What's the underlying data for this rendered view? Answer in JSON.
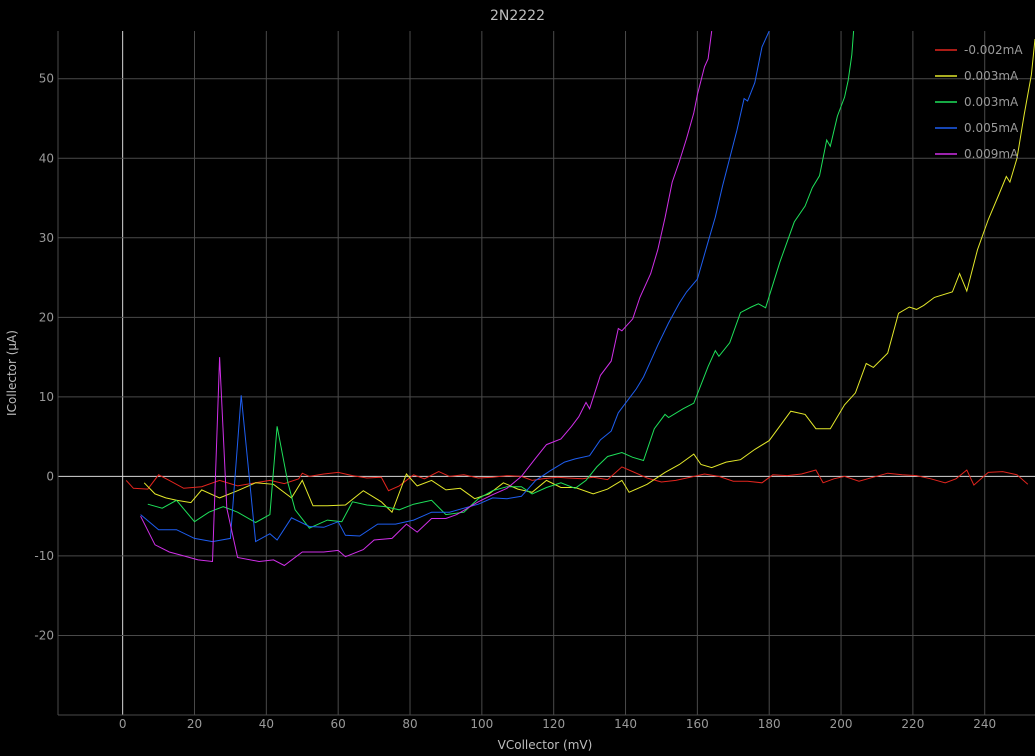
{
  "chart_data": {
    "type": "line",
    "title": "2N2222",
    "xlabel": "VCollector (mV)",
    "ylabel": "ICollector (µA)",
    "xlim": [
      -18,
      254
    ],
    "ylim": [
      -30,
      56
    ],
    "xticks": [
      0,
      20,
      40,
      60,
      80,
      100,
      120,
      140,
      160,
      180,
      200,
      220,
      240
    ],
    "yticks": [
      -20,
      -10,
      0,
      10,
      20,
      30,
      40,
      50
    ],
    "grid": true,
    "legend_position": "top-right",
    "series": [
      {
        "name": "-0.002mA",
        "color": "#e3251e",
        "points": [
          [
            1,
            -0.5
          ],
          [
            3,
            -1.5
          ],
          [
            7,
            -1.6
          ],
          [
            10,
            0.2
          ],
          [
            13,
            -0.5
          ],
          [
            17,
            -1.5
          ],
          [
            22,
            -1.3
          ],
          [
            27,
            -0.5
          ],
          [
            32,
            -1.2
          ],
          [
            37,
            -0.8
          ],
          [
            41,
            -0.5
          ],
          [
            45,
            -0.9
          ],
          [
            49,
            -0.3
          ],
          [
            50,
            0.4
          ],
          [
            52,
            0
          ],
          [
            56,
            0.3
          ],
          [
            60,
            0.5
          ],
          [
            64,
            0.1
          ],
          [
            68,
            -0.2
          ],
          [
            72,
            -0.1
          ],
          [
            74,
            -1.8
          ],
          [
            77,
            -1.2
          ],
          [
            81,
            0.2
          ],
          [
            84,
            -0.3
          ],
          [
            88,
            0.6
          ],
          [
            91,
            0
          ],
          [
            95,
            0.2
          ],
          [
            99,
            -0.2
          ],
          [
            103,
            -0.1
          ],
          [
            107,
            0.1
          ],
          [
            111,
            0
          ],
          [
            114,
            -0.5
          ],
          [
            117,
            -0.3
          ],
          [
            121,
            -0.1
          ],
          [
            124,
            -0.2
          ],
          [
            128,
            -0.3
          ],
          [
            131,
            -0.1
          ],
          [
            135,
            -0.4
          ],
          [
            139,
            1.2
          ],
          [
            143,
            0.4
          ],
          [
            146,
            -0.2
          ],
          [
            150,
            -0.7
          ],
          [
            154,
            -0.5
          ],
          [
            158,
            -0.1
          ],
          [
            162,
            0.3
          ],
          [
            166,
            0
          ],
          [
            170,
            -0.6
          ],
          [
            174,
            -0.6
          ],
          [
            178,
            -0.8
          ],
          [
            181,
            0.2
          ],
          [
            185,
            0.1
          ],
          [
            189,
            0.3
          ],
          [
            193,
            0.8
          ],
          [
            195,
            -0.8
          ],
          [
            198,
            -0.3
          ],
          [
            201,
            0
          ],
          [
            205,
            -0.6
          ],
          [
            209,
            -0.1
          ],
          [
            213,
            0.4
          ],
          [
            217,
            0.2
          ],
          [
            221,
            0.1
          ],
          [
            225,
            -0.3
          ],
          [
            229,
            -0.8
          ],
          [
            232,
            -0.3
          ],
          [
            235,
            0.8
          ],
          [
            237,
            -1.1
          ],
          [
            241,
            0.5
          ],
          [
            245,
            0.6
          ],
          [
            249,
            0.2
          ],
          [
            252,
            -1
          ]
        ]
      },
      {
        "name": "0.003mA",
        "color": "#e3e82a",
        "points": [
          [
            6,
            -0.8
          ],
          [
            9,
            -2.2
          ],
          [
            12,
            -2.7
          ],
          [
            15,
            -3
          ],
          [
            19,
            -3.3
          ],
          [
            22,
            -1.7
          ],
          [
            27,
            -2.7
          ],
          [
            32,
            -1.8
          ],
          [
            37,
            -0.8
          ],
          [
            42,
            -1
          ],
          [
            47,
            -2.7
          ],
          [
            50,
            -0.5
          ],
          [
            53,
            -3.7
          ],
          [
            57,
            -3.7
          ],
          [
            62,
            -3.6
          ],
          [
            67,
            -1.8
          ],
          [
            72,
            -3.2
          ],
          [
            75,
            -4.5
          ],
          [
            79,
            0.3
          ],
          [
            82,
            -1.2
          ],
          [
            86,
            -0.5
          ],
          [
            90,
            -1.7
          ],
          [
            94,
            -1.5
          ],
          [
            98,
            -2.8
          ],
          [
            102,
            -2.2
          ],
          [
            106,
            -0.8
          ],
          [
            110,
            -1.6
          ],
          [
            114,
            -2
          ],
          [
            118,
            -0.5
          ],
          [
            122,
            -1.4
          ],
          [
            126,
            -1.4
          ],
          [
            131,
            -2.2
          ],
          [
            135,
            -1.6
          ],
          [
            139,
            -0.5
          ],
          [
            141,
            -2
          ],
          [
            146,
            -1
          ],
          [
            151,
            0.5
          ],
          [
            155,
            1.5
          ],
          [
            159,
            2.8
          ],
          [
            161,
            1.5
          ],
          [
            164,
            1.1
          ],
          [
            168,
            1.8
          ],
          [
            172,
            2.1
          ],
          [
            176,
            3.4
          ],
          [
            180,
            4.5
          ],
          [
            186,
            8.2
          ],
          [
            190,
            7.8
          ],
          [
            193,
            6
          ],
          [
            197,
            6
          ],
          [
            201,
            9
          ],
          [
            204,
            10.5
          ],
          [
            207,
            14.2
          ],
          [
            209,
            13.7
          ],
          [
            213,
            15.5
          ],
          [
            216,
            20.5
          ],
          [
            219,
            21.3
          ],
          [
            221,
            21
          ],
          [
            223,
            21.5
          ],
          [
            226,
            22.5
          ],
          [
            231,
            23.2
          ],
          [
            233,
            25.5
          ],
          [
            235,
            23.3
          ],
          [
            238,
            28.5
          ],
          [
            241,
            32.3
          ],
          [
            244,
            35.5
          ],
          [
            246,
            37.7
          ],
          [
            247,
            37
          ],
          [
            249,
            40
          ],
          [
            251,
            45.5
          ],
          [
            253,
            50.5
          ],
          [
            254,
            55
          ]
        ]
      },
      {
        "name": "0.003mA",
        "color": "#1ee05a",
        "points": [
          [
            7,
            -3.5
          ],
          [
            11,
            -4
          ],
          [
            15,
            -3
          ],
          [
            20,
            -5.7
          ],
          [
            24,
            -4.5
          ],
          [
            28,
            -3.8
          ],
          [
            32,
            -4.5
          ],
          [
            37,
            -5.8
          ],
          [
            41,
            -4.8
          ],
          [
            43,
            6.3
          ],
          [
            46,
            -0.8
          ],
          [
            48,
            -4.2
          ],
          [
            52,
            -6.5
          ],
          [
            57,
            -5.5
          ],
          [
            61,
            -5.7
          ],
          [
            64,
            -3.2
          ],
          [
            68,
            -3.6
          ],
          [
            73,
            -3.8
          ],
          [
            77,
            -4.2
          ],
          [
            81,
            -3.5
          ],
          [
            86,
            -3
          ],
          [
            90,
            -4.8
          ],
          [
            95,
            -4.5
          ],
          [
            99,
            -2.8
          ],
          [
            103,
            -1.8
          ],
          [
            107,
            -1.3
          ],
          [
            111,
            -1.3
          ],
          [
            114,
            -2.2
          ],
          [
            118,
            -1.4
          ],
          [
            122,
            -0.8
          ],
          [
            126,
            -1.5
          ],
          [
            129,
            -0.5
          ],
          [
            132,
            1.2
          ],
          [
            135,
            2.5
          ],
          [
            139,
            3
          ],
          [
            142,
            2.4
          ],
          [
            145,
            2
          ],
          [
            148,
            6
          ],
          [
            151,
            7.8
          ],
          [
            152,
            7.4
          ],
          [
            156,
            8.5
          ],
          [
            159,
            9.2
          ],
          [
            163,
            13.8
          ],
          [
            165,
            15.8
          ],
          [
            166,
            15.1
          ],
          [
            169,
            16.8
          ],
          [
            172,
            20.6
          ],
          [
            175,
            21.3
          ],
          [
            177,
            21.7
          ],
          [
            179,
            21.2
          ],
          [
            183,
            27
          ],
          [
            187,
            32
          ],
          [
            190,
            34
          ],
          [
            192,
            36.3
          ],
          [
            194,
            37.8
          ],
          [
            196,
            42.3
          ],
          [
            197,
            41.5
          ],
          [
            199,
            45.3
          ],
          [
            201,
            47.7
          ],
          [
            202,
            49.8
          ],
          [
            203,
            53
          ],
          [
            203.5,
            56
          ]
        ]
      },
      {
        "name": "0.005mA",
        "color": "#1e5ef0",
        "points": [
          [
            5,
            -4.8
          ],
          [
            10,
            -6.7
          ],
          [
            15,
            -6.7
          ],
          [
            20,
            -7.8
          ],
          [
            25,
            -8.2
          ],
          [
            30,
            -7.8
          ],
          [
            33,
            10.2
          ],
          [
            37,
            -8.2
          ],
          [
            41,
            -7.2
          ],
          [
            43,
            -8
          ],
          [
            47,
            -5.2
          ],
          [
            52,
            -6.3
          ],
          [
            56,
            -6.4
          ],
          [
            60,
            -5.7
          ],
          [
            62,
            -7.4
          ],
          [
            66,
            -7.5
          ],
          [
            71,
            -6
          ],
          [
            76,
            -6
          ],
          [
            81,
            -5.5
          ],
          [
            86,
            -4.5
          ],
          [
            91,
            -4.5
          ],
          [
            95,
            -4
          ],
          [
            99,
            -3.5
          ],
          [
            103,
            -2.7
          ],
          [
            107,
            -2.8
          ],
          [
            111,
            -2.5
          ],
          [
            115,
            -0.5
          ],
          [
            119,
            0.7
          ],
          [
            123,
            1.8
          ],
          [
            126,
            2.2
          ],
          [
            130,
            2.6
          ],
          [
            133,
            4.6
          ],
          [
            136,
            5.7
          ],
          [
            138,
            8
          ],
          [
            140,
            9.2
          ],
          [
            143,
            11
          ],
          [
            145,
            12.5
          ],
          [
            147,
            14.5
          ],
          [
            149,
            16.5
          ],
          [
            152,
            19.3
          ],
          [
            155,
            21.8
          ],
          [
            157,
            23.2
          ],
          [
            160,
            24.8
          ],
          [
            163,
            29.5
          ],
          [
            165,
            32.6
          ],
          [
            167,
            36.5
          ],
          [
            169,
            40
          ],
          [
            171,
            43.5
          ],
          [
            173,
            47.5
          ],
          [
            174,
            47.2
          ],
          [
            176,
            49.5
          ],
          [
            178,
            54
          ],
          [
            180,
            56
          ]
        ]
      },
      {
        "name": "0.009mA",
        "color": "#d02fe8",
        "points": [
          [
            5,
            -5
          ],
          [
            9,
            -8.6
          ],
          [
            13,
            -9.5
          ],
          [
            17,
            -10
          ],
          [
            21,
            -10.5
          ],
          [
            25,
            -10.7
          ],
          [
            27,
            15
          ],
          [
            29,
            -4
          ],
          [
            32,
            -10.2
          ],
          [
            38,
            -10.7
          ],
          [
            42,
            -10.5
          ],
          [
            45,
            -11.2
          ],
          [
            50,
            -9.5
          ],
          [
            56,
            -9.5
          ],
          [
            60,
            -9.3
          ],
          [
            62,
            -10.1
          ],
          [
            67,
            -9.2
          ],
          [
            70,
            -8
          ],
          [
            75,
            -7.8
          ],
          [
            79,
            -6
          ],
          [
            82,
            -7
          ],
          [
            86,
            -5.3
          ],
          [
            90,
            -5.3
          ],
          [
            93,
            -4.8
          ],
          [
            96,
            -4
          ],
          [
            99,
            -3.2
          ],
          [
            103,
            -2.3
          ],
          [
            107,
            -1.5
          ],
          [
            111,
            0
          ],
          [
            115,
            2.3
          ],
          [
            118,
            4
          ],
          [
            122,
            4.7
          ],
          [
            125,
            6.3
          ],
          [
            127,
            7.5
          ],
          [
            129,
            9.3
          ],
          [
            130,
            8.5
          ],
          [
            133,
            12.7
          ],
          [
            136,
            14.5
          ],
          [
            138,
            18.6
          ],
          [
            139,
            18.3
          ],
          [
            142,
            19.8
          ],
          [
            144,
            22.5
          ],
          [
            147,
            25.5
          ],
          [
            149,
            28.5
          ],
          [
            151,
            32.5
          ],
          [
            153,
            37
          ],
          [
            155,
            39.6
          ],
          [
            157,
            42.5
          ],
          [
            159,
            45.7
          ],
          [
            160,
            48
          ],
          [
            162,
            51.5
          ],
          [
            163,
            52.5
          ],
          [
            164,
            56
          ]
        ]
      }
    ]
  }
}
